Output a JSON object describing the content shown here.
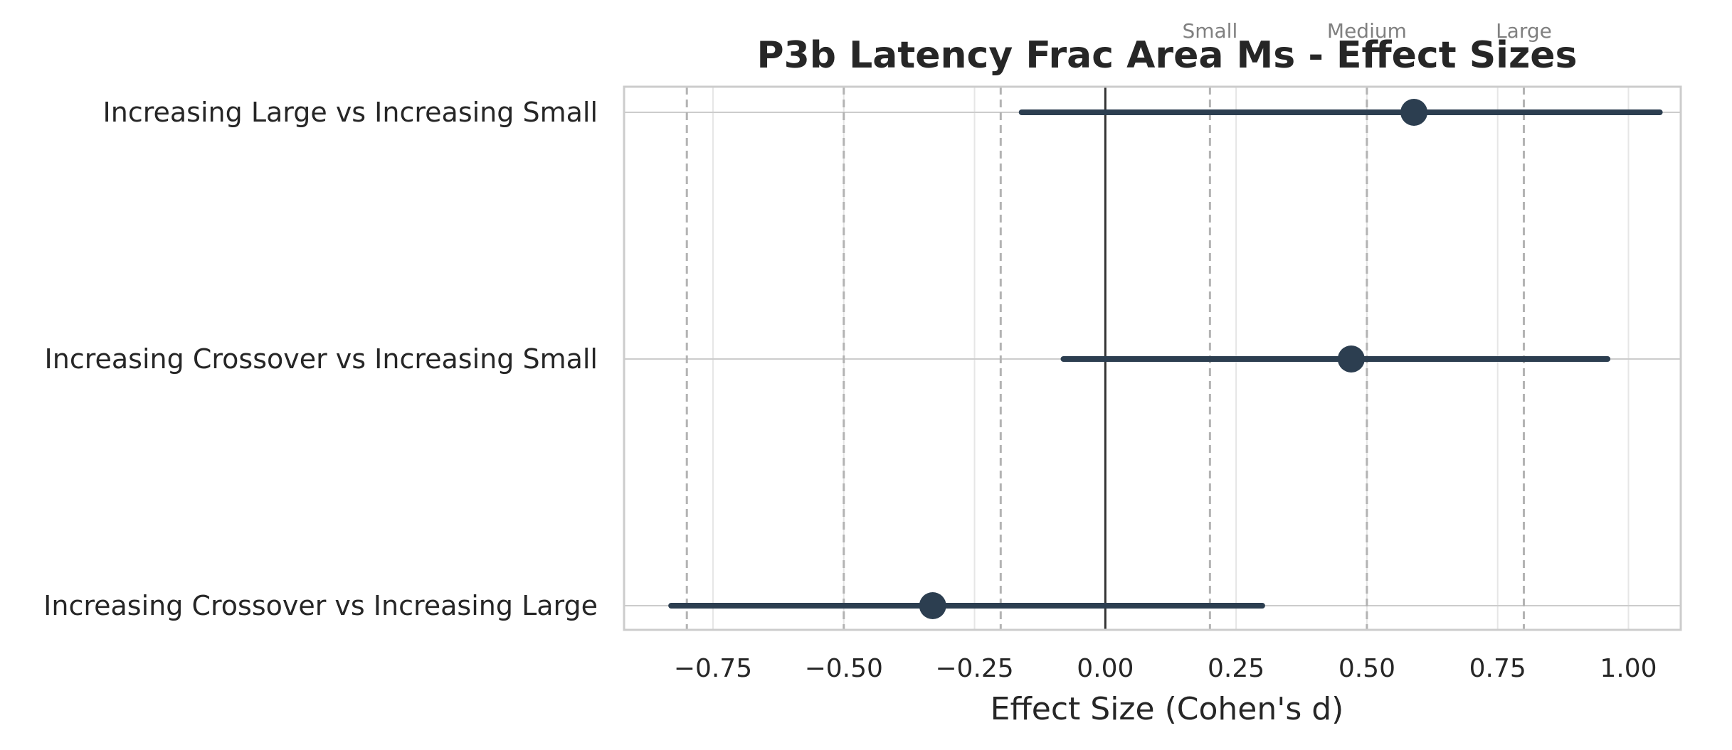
{
  "chart_data": {
    "type": "forest",
    "title": "P3b Latency Frac Area Ms - Effect Sizes",
    "xlabel": "Effect Size (Cohen's d)",
    "ylabel": "",
    "xlim": [
      -0.92,
      1.1
    ],
    "xticks": [
      -0.75,
      -0.5,
      -0.25,
      0.0,
      0.25,
      0.5,
      0.75,
      1.0
    ],
    "xtick_labels": [
      "−0.75",
      "−0.50",
      "−0.25",
      "0.00",
      "0.25",
      "0.50",
      "0.75",
      "1.00"
    ],
    "grid": true,
    "zero_line": 0.0,
    "reference_lines": [
      {
        "value": -0.8,
        "label": ""
      },
      {
        "value": -0.5,
        "label": ""
      },
      {
        "value": -0.2,
        "label": ""
      },
      {
        "value": 0.2,
        "label": "Small"
      },
      {
        "value": 0.5,
        "label": "Medium"
      },
      {
        "value": 0.8,
        "label": "Large"
      }
    ],
    "comparisons": [
      {
        "label": "Increasing Large vs Increasing Small",
        "d": 0.59,
        "ci_low": -0.16,
        "ci_high": 1.06
      },
      {
        "label": "Increasing Crossover vs Increasing Small",
        "d": 0.47,
        "ci_low": -0.08,
        "ci_high": 0.96
      },
      {
        "label": "Increasing Crossover vs Increasing Large",
        "d": -0.33,
        "ci_low": -0.83,
        "ci_high": 0.3
      }
    ],
    "colors": {
      "marker": "#2c3e50",
      "zero_line": "#333333",
      "reference_line": "#b3b3b3",
      "grid": "#e6e6e6",
      "spine": "#cccccc"
    }
  }
}
